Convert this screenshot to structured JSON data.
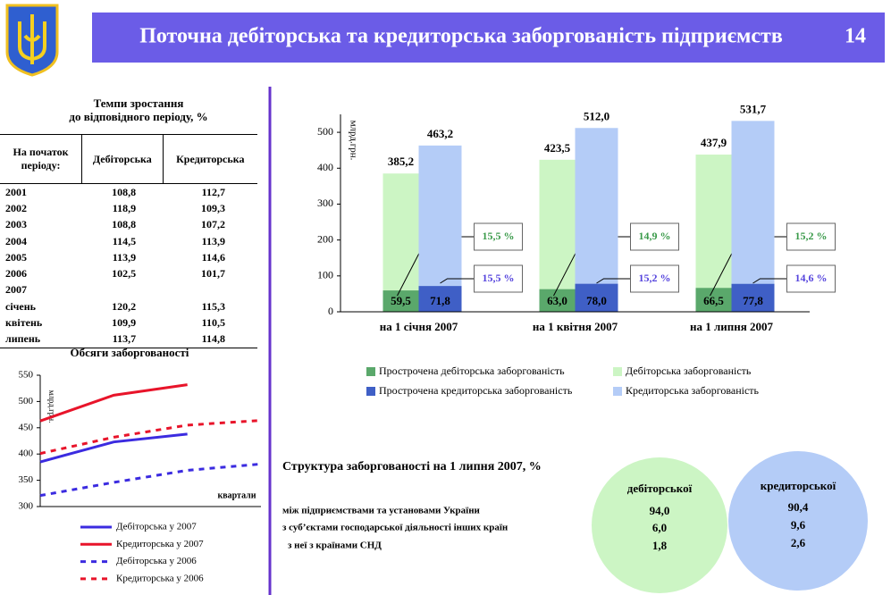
{
  "header": {
    "title": "Поточна дебіторська та кредиторська заборгованість підприємств",
    "page": "14"
  },
  "growth_table": {
    "title_lines": [
      "Темпи зростання",
      "до відповідного періоду, %"
    ],
    "columns": [
      "На початок періоду:",
      "Дебіторська",
      "Кредиторська"
    ],
    "rows": [
      [
        "2001",
        "108,8",
        "112,7"
      ],
      [
        "2002",
        "118,9",
        "109,3"
      ],
      [
        "2003",
        "108,8",
        "107,2"
      ],
      [
        "2004",
        "114,5",
        "113,9"
      ],
      [
        "2005",
        "113,9",
        "114,6"
      ],
      [
        "2006",
        "102,5",
        "101,7"
      ],
      [
        "2007"
      ],
      [
        "січень",
        "120,2",
        "115,3"
      ],
      [
        "квітень",
        "109,9",
        "110,5"
      ],
      [
        "липень",
        "113,7",
        "114,8"
      ]
    ]
  },
  "chart_data": [
    {
      "type": "bar",
      "y_label": "млрд.грн.",
      "categories": [
        "на 1 січня 2007",
        "на 1 квітня 2007",
        "на 1 липня 2007"
      ],
      "ylim": [
        0,
        550
      ],
      "yticks": [
        0,
        100,
        200,
        300,
        400,
        500
      ],
      "series": [
        {
          "name": "Прострочена дебіторська заборгованість",
          "color": "#5aa86b",
          "values": [
            59.5,
            63.0,
            66.5
          ],
          "value_labels": [
            "59,5",
            "63,0",
            "66,5"
          ],
          "share_labels": [
            "15,5 %",
            "14,9 %",
            "15,2 %"
          ]
        },
        {
          "name": "Дебіторська заборгованість",
          "color": "#ccf5c4",
          "values": [
            385.2,
            423.5,
            437.9
          ],
          "value_labels": [
            "385,2",
            "423,5",
            "437,9"
          ]
        },
        {
          "name": "Прострочена кредиторська заборгованість",
          "color": "#3f5fc6",
          "values": [
            71.8,
            78.0,
            77.8
          ],
          "value_labels": [
            "71,8",
            "78,0",
            "77,8"
          ],
          "share_labels": [
            "15,5 %",
            "15,2 %",
            "14,6 %"
          ]
        },
        {
          "name": "Кредиторська заборгованість",
          "color": "#b4ccf7",
          "values": [
            463.2,
            512.0,
            531.7
          ],
          "value_labels": [
            "463,2",
            "512,0",
            "531,7"
          ]
        }
      ]
    },
    {
      "type": "line",
      "title": "Обсяги заборгованості",
      "y_label": "млрд.грн.",
      "x_label": "квартали",
      "categories": [
        null,
        null,
        null,
        null
      ],
      "ylim": [
        300,
        550
      ],
      "yticks": [
        300,
        350,
        400,
        450,
        500,
        550
      ],
      "series": [
        {
          "name": "Дебіторська у 2007",
          "color": "#3b2be0",
          "values": [
            385,
            423,
            438,
            null
          ]
        },
        {
          "name": "Кредиторська у 2007",
          "color": "#e8142a",
          "values": [
            463,
            512,
            532,
            null
          ]
        },
        {
          "name": "Дебіторська у 2006",
          "color": "#3b2be0",
          "dashed": true,
          "values": [
            321,
            346,
            369,
            381
          ]
        },
        {
          "name": "Кредиторська у 2006",
          "color": "#e8142a",
          "dashed": true,
          "values": [
            401,
            432,
            455,
            464
          ]
        }
      ]
    }
  ],
  "structure": {
    "title": "Структура заборгованості на 1 липня 2007, %",
    "rows": [
      "між підприємствами та установами України",
      "з суб’єктами господарської діяльності інших країн",
      "з неї з країнами СНД"
    ],
    "debit": {
      "label": "дебіторської",
      "values": [
        "94,0",
        "6,0",
        "1,8"
      ]
    },
    "credit": {
      "label": "кредиторської",
      "values": [
        "90,4",
        "9,6",
        "2,6"
      ]
    }
  }
}
